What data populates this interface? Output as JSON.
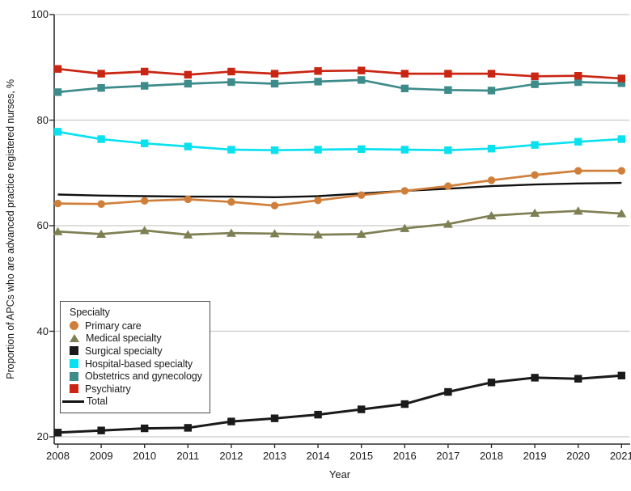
{
  "figure": {
    "y_axis_title": "Proportion of APCs who are advanced practice registered nurses, %",
    "x_axis_title": "Year",
    "legend_title": "Specialty"
  },
  "colors": {
    "grid": "#c9c9c9",
    "axis": "#2e2e2e",
    "text": "#1a1a1a",
    "background": "#ffffff"
  },
  "chart_data": {
    "type": "line",
    "title": "",
    "xlabel": "Year",
    "ylabel": "Proportion of APCs who are advanced practice registered nurses, %",
    "x": [
      2008,
      2009,
      2010,
      2011,
      2012,
      2013,
      2014,
      2015,
      2016,
      2017,
      2018,
      2019,
      2020,
      2021
    ],
    "yticks": [
      20,
      40,
      60,
      80,
      100
    ],
    "ylim": [
      18.7,
      100
    ],
    "grid": true,
    "legend_position": "inside-left-middle",
    "legend_title": "Specialty",
    "series": [
      {
        "name": "Primary care",
        "marker": "circle",
        "color": "#d07f3a",
        "line_width": 2.7,
        "values": [
          64.2,
          64.1,
          64.7,
          65.0,
          64.5,
          63.8,
          64.8,
          65.8,
          66.6,
          67.5,
          68.6,
          69.6,
          70.4,
          70.4
        ]
      },
      {
        "name": "Medical specialty",
        "marker": "triangle",
        "color": "#7e8054",
        "line_width": 2.7,
        "values": [
          58.9,
          58.4,
          59.1,
          58.3,
          58.6,
          58.5,
          58.3,
          58.4,
          59.5,
          60.3,
          61.9,
          62.4,
          62.8,
          62.3
        ]
      },
      {
        "name": "Surgical specialty",
        "marker": "square",
        "color": "#1a1a1a",
        "line_width": 3.0,
        "values": [
          20.8,
          21.2,
          21.6,
          21.7,
          22.9,
          23.5,
          24.2,
          25.2,
          26.2,
          28.5,
          30.3,
          31.2,
          31.0,
          31.6
        ]
      },
      {
        "name": "Hospital-based specialty",
        "marker": "square",
        "color": "#0ae1ef",
        "line_width": 2.7,
        "values": [
          77.8,
          76.4,
          75.6,
          75.0,
          74.4,
          74.3,
          74.4,
          74.5,
          74.4,
          74.3,
          74.6,
          75.3,
          75.9,
          76.4
        ]
      },
      {
        "name": "Obstetrics and gynecology",
        "marker": "square",
        "color": "#3e8c8a",
        "line_width": 2.7,
        "values": [
          85.3,
          86.1,
          86.5,
          86.9,
          87.2,
          86.9,
          87.3,
          87.6,
          86.0,
          85.7,
          85.6,
          86.8,
          87.2,
          87.0
        ]
      },
      {
        "name": "Psychiatry",
        "marker": "square",
        "color": "#c92512",
        "line_width": 2.7,
        "values": [
          89.7,
          88.8,
          89.2,
          88.6,
          89.2,
          88.8,
          89.3,
          89.4,
          88.8,
          88.8,
          88.8,
          88.3,
          88.4,
          87.9
        ]
      },
      {
        "name": "Total",
        "marker": "none",
        "color": "#111111",
        "line_width": 2.4,
        "values": [
          65.9,
          65.7,
          65.6,
          65.5,
          65.5,
          65.4,
          65.6,
          66.1,
          66.6,
          67.0,
          67.5,
          67.8,
          68.0,
          68.1
        ]
      }
    ]
  }
}
